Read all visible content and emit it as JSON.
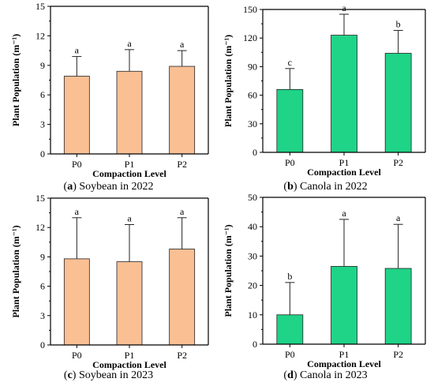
{
  "chart_data": [
    {
      "type": "bar",
      "caption": {
        "letter": "a",
        "text": " Soybean in 2022"
      },
      "categories": [
        "P0",
        "P1",
        "P2"
      ],
      "values": [
        7.9,
        8.4,
        8.9
      ],
      "errors": [
        2.0,
        2.2,
        1.6
      ],
      "letters": [
        "a",
        "a",
        "a"
      ],
      "xlabel": "Compaction Level",
      "ylabel": "Plant Population (m⁻¹)",
      "ylim": [
        0,
        15
      ],
      "yticks": [
        "0",
        "3",
        "6",
        "9",
        "12",
        "15"
      ],
      "color": "#fbbf94",
      "grid": false
    },
    {
      "type": "bar",
      "caption": {
        "letter": "b",
        "text": " Canola in 2022"
      },
      "categories": [
        "P0",
        "P1",
        "P2"
      ],
      "values": [
        66,
        123,
        104
      ],
      "errors": [
        22,
        22,
        24
      ],
      "letters": [
        "c",
        "a",
        "b"
      ],
      "xlabel": "Compaction Level",
      "ylabel": "Plant Population (m⁻¹)",
      "ylim": [
        0,
        150
      ],
      "yticks": [
        "0",
        "30",
        "60",
        "90",
        "120",
        "150"
      ],
      "color": "#1fd387",
      "grid": false
    },
    {
      "type": "bar",
      "caption": {
        "letter": "c",
        "text": " Soybean in 2023"
      },
      "categories": [
        "P0",
        "P1",
        "P2"
      ],
      "values": [
        8.8,
        8.5,
        9.8
      ],
      "errors": [
        4.2,
        3.8,
        3.2
      ],
      "letters": [
        "a",
        "a",
        "a"
      ],
      "xlabel": "Compaction Level",
      "ylabel": "Plant Population (m⁻¹)",
      "ylim": [
        0,
        15
      ],
      "yticks": [
        "0",
        "3",
        "6",
        "9",
        "12",
        "15"
      ],
      "color": "#fbbf94",
      "grid": false
    },
    {
      "type": "bar",
      "caption": {
        "letter": "d",
        "text": " Canola in 2023"
      },
      "categories": [
        "P0",
        "P1",
        "P2"
      ],
      "values": [
        10,
        26.5,
        25.8
      ],
      "errors": [
        11,
        16,
        15
      ],
      "letters": [
        "b",
        "a",
        "a"
      ],
      "xlabel": "Compaction Level",
      "ylabel": "Plant Population (m⁻¹)",
      "ylim": [
        0,
        50
      ],
      "yticks": [
        "0",
        "10",
        "20",
        "30",
        "40",
        "50"
      ],
      "color": "#1fd387",
      "grid": false
    }
  ]
}
